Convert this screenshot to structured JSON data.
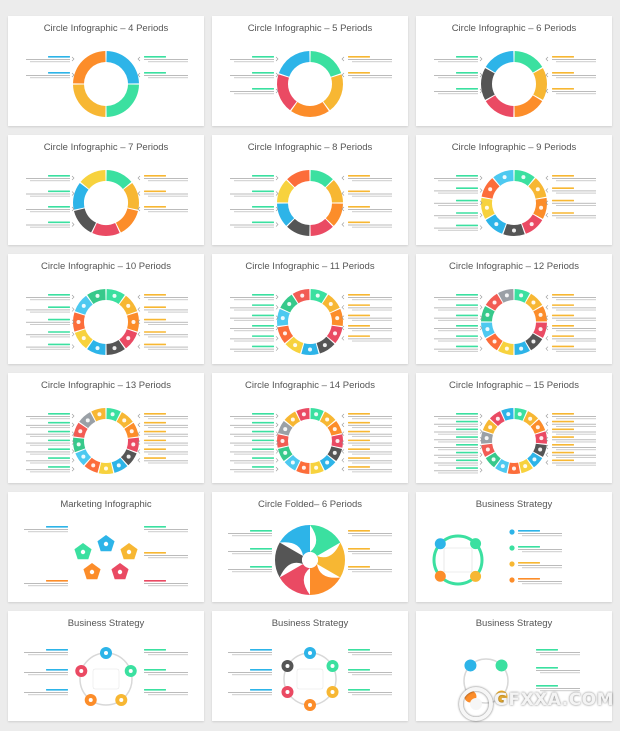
{
  "slides": [
    {
      "title": "Circle Infographic – 4 Periods",
      "kind": "ring",
      "segments": 4,
      "colors": [
        "#2db4e8",
        "#3be0a0",
        "#f7b733",
        "#fc8d2a"
      ],
      "icons": false
    },
    {
      "title": "Circle Infographic – 5 Periods",
      "kind": "ring",
      "segments": 5,
      "colors": [
        "#3be0a0",
        "#f7b733",
        "#fc8d2a",
        "#ea4a63",
        "#2db4e8"
      ],
      "icons": false
    },
    {
      "title": "Circle Infographic – 6 Periods",
      "kind": "ring",
      "segments": 6,
      "colors": [
        "#3be0a0",
        "#f7b733",
        "#fc8d2a",
        "#ea4a63",
        "#555555",
        "#2db4e8"
      ],
      "icons": false
    },
    {
      "title": "Circle Infographic – 7 Periods",
      "kind": "ring",
      "segments": 7,
      "colors": [
        "#3be0a0",
        "#f7b733",
        "#fc8d2a",
        "#ea4a63",
        "#555555",
        "#2db4e8",
        "#f7d23e"
      ],
      "icons": false
    },
    {
      "title": "Circle Infographic – 8 Periods",
      "kind": "ring",
      "segments": 8,
      "colors": [
        "#3be0a0",
        "#f7b733",
        "#fc8d2a",
        "#ea4a63",
        "#555555",
        "#2db4e8",
        "#f7d23e",
        "#fc6d3a"
      ],
      "icons": false
    },
    {
      "title": "Circle Infographic – 9 Periods",
      "kind": "ring",
      "segments": 9,
      "colors": [
        "#3be0a0",
        "#f7b733",
        "#fc8d2a",
        "#ea4a63",
        "#555555",
        "#2db4e8",
        "#f7d23e",
        "#fc6d3a",
        "#4dc9f0"
      ],
      "icons": true
    },
    {
      "title": "Circle Infographic – 10 Periods",
      "kind": "ring",
      "segments": 10,
      "colors": [
        "#3be0a0",
        "#f7b733",
        "#fc8d2a",
        "#ea4a63",
        "#555555",
        "#2db4e8",
        "#f7d23e",
        "#fc6d3a",
        "#4dc9f0",
        "#37c98b"
      ],
      "icons": true
    },
    {
      "title": "Circle Infographic – 11 Periods",
      "kind": "ring",
      "segments": 11,
      "colors": [
        "#3be0a0",
        "#f7b733",
        "#fc8d2a",
        "#ea4a63",
        "#555555",
        "#2db4e8",
        "#f7d23e",
        "#fc6d3a",
        "#4dc9f0",
        "#37c98b",
        "#f25c54"
      ],
      "icons": true
    },
    {
      "title": "Circle Infographic – 12 Periods",
      "kind": "ring",
      "segments": 12,
      "colors": [
        "#3be0a0",
        "#f7b733",
        "#fc8d2a",
        "#ea4a63",
        "#555555",
        "#2db4e8",
        "#f7d23e",
        "#fc6d3a",
        "#4dc9f0",
        "#37c98b",
        "#f25c54",
        "#9aa0a6"
      ],
      "icons": true
    },
    {
      "title": "Circle Infographic – 13 Periods",
      "kind": "ring",
      "segments": 13,
      "colors": [
        "#3be0a0",
        "#f7b733",
        "#fc8d2a",
        "#ea4a63",
        "#555555",
        "#2db4e8",
        "#f7d23e",
        "#fc6d3a",
        "#4dc9f0",
        "#37c98b",
        "#f25c54",
        "#9aa0a6",
        "#f7b733"
      ],
      "icons": true
    },
    {
      "title": "Circle Infographic – 14 Periods",
      "kind": "ring",
      "segments": 14,
      "colors": [
        "#3be0a0",
        "#f7b733",
        "#fc8d2a",
        "#ea4a63",
        "#555555",
        "#2db4e8",
        "#f7d23e",
        "#fc6d3a",
        "#4dc9f0",
        "#37c98b",
        "#f25c54",
        "#9aa0a6",
        "#f7b733",
        "#ea4a63"
      ],
      "icons": true
    },
    {
      "title": "Circle Infographic – 15 Periods",
      "kind": "ring",
      "segments": 15,
      "colors": [
        "#3be0a0",
        "#f7b733",
        "#fc8d2a",
        "#ea4a63",
        "#555555",
        "#2db4e8",
        "#f7d23e",
        "#fc6d3a",
        "#4dc9f0",
        "#37c98b",
        "#f25c54",
        "#9aa0a6",
        "#f7b733",
        "#ea4a63",
        "#2db4e8"
      ],
      "icons": true
    },
    {
      "title": "Marketing Infographic",
      "kind": "pentagons",
      "colors": [
        "#2db4e8",
        "#3be0a0",
        "#f7b733",
        "#fc8d2a",
        "#ea4a63"
      ]
    },
    {
      "title": "Circle Folded– 6 Periods",
      "kind": "folded",
      "colors": [
        "#3be0a0",
        "#f7b733",
        "#fc8d2a",
        "#ea4a63",
        "#555555",
        "#2db4e8"
      ]
    },
    {
      "title": "Business Strategy",
      "kind": "strategy4",
      "colors": [
        "#2db4e8",
        "#3be0a0",
        "#f7b733",
        "#fc8d2a"
      ]
    },
    {
      "title": "Business Strategy",
      "kind": "strategy5",
      "colors": [
        "#2db4e8",
        "#3be0a0",
        "#f7b733",
        "#fc8d2a",
        "#ea4a63"
      ]
    },
    {
      "title": "Business Strategy",
      "kind": "strategy6",
      "colors": [
        "#2db4e8",
        "#3be0a0",
        "#f7b733",
        "#fc8d2a",
        "#ea4a63",
        "#555555"
      ]
    },
    {
      "title": "Business Strategy",
      "kind": "strategy4b",
      "colors": [
        "#2db4e8",
        "#3be0a0",
        "#f7b733",
        "#fc8d2a"
      ]
    }
  ],
  "watermark": {
    "text": "GFXXA.COM",
    "icon": "gfxxa-logo-icon"
  }
}
